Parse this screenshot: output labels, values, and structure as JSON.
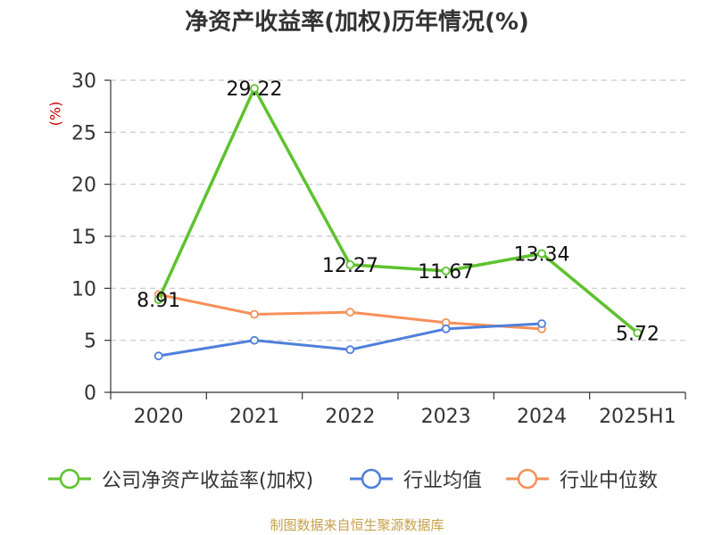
{
  "title": "净资产收益率(加权)历年情况(%)",
  "unit_label": "(%)",
  "footer": "制图数据来自恒生聚源数据库",
  "colors": {
    "company": "#5ec22e",
    "avg": "#4f7fdb",
    "median": "#f79059",
    "grid": "#c8c8c8",
    "axis": "#333333",
    "unit": "#cc0000",
    "footer": "#c8a14a"
  },
  "chart_data": {
    "type": "line",
    "title": "净资产收益率(加权)历年情况(%)",
    "ylabel": "(%)",
    "xlabel": "",
    "categories": [
      "2020",
      "2021",
      "2022",
      "2023",
      "2024",
      "2025H1"
    ],
    "ylim": [
      0,
      30
    ],
    "yticks": [
      0,
      5,
      10,
      15,
      20,
      25,
      30
    ],
    "grid": true,
    "legend_position": "bottom",
    "series": [
      {
        "name": "公司净资产收益率(加权)",
        "color": "#5ec22e",
        "values": [
          8.91,
          29.22,
          12.27,
          11.67,
          13.34,
          5.72
        ],
        "labels": [
          "8.91",
          "29.22",
          "12.27",
          "11.67",
          "13.34",
          "5.72"
        ]
      },
      {
        "name": "行业均值",
        "color": "#4f7fdb",
        "values": [
          3.5,
          5.0,
          4.1,
          6.1,
          6.6,
          null
        ]
      },
      {
        "name": "行业中位数",
        "color": "#f79059",
        "values": [
          9.4,
          7.5,
          7.7,
          6.7,
          6.1,
          null
        ]
      }
    ]
  }
}
